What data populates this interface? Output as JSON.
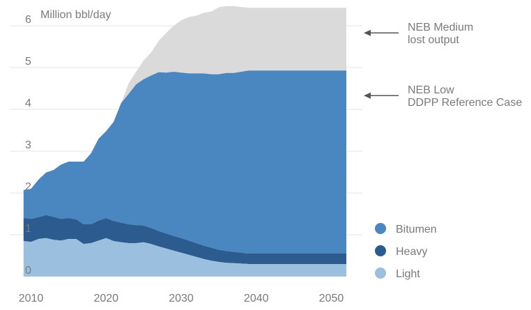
{
  "chart_data": {
    "type": "area",
    "ylabel": "Million bbl/day",
    "ylim": [
      0,
      6
    ],
    "yticks": [
      0,
      1,
      2,
      3,
      4,
      5,
      6
    ],
    "xlim": [
      2008,
      2052
    ],
    "xticks": [
      2010,
      2020,
      2030,
      2040,
      2050
    ],
    "grid": true,
    "legend_placement": "bottom-right",
    "colors": {
      "bitumen": "#4a86c0",
      "heavy": "#2c5b8f",
      "light": "#9bbfdf",
      "lost_output": "#dadada",
      "grid": "#e3e3e3",
      "text": "#7a7a7a",
      "arrow": "#555555"
    },
    "x": [
      2009,
      2010,
      2011,
      2012,
      2013,
      2014,
      2015,
      2016,
      2017,
      2018,
      2019,
      2020,
      2021,
      2022,
      2023,
      2024,
      2025,
      2026,
      2027,
      2028,
      2029,
      2030,
      2031,
      2032,
      2033,
      2034,
      2035,
      2036,
      2037,
      2038,
      2039,
      2040,
      2041,
      2042,
      2043,
      2044,
      2045,
      2046,
      2047,
      2048,
      2049,
      2050,
      2051,
      2052
    ],
    "series": [
      {
        "name": "Light",
        "stack_order": 1,
        "values": [
          0.85,
          0.83,
          0.9,
          0.92,
          0.88,
          0.86,
          0.9,
          0.9,
          0.78,
          0.8,
          0.86,
          0.92,
          0.85,
          0.82,
          0.8,
          0.8,
          0.82,
          0.78,
          0.72,
          0.67,
          0.62,
          0.57,
          0.52,
          0.47,
          0.42,
          0.38,
          0.35,
          0.33,
          0.32,
          0.31,
          0.3,
          0.3,
          0.3,
          0.3,
          0.3,
          0.3,
          0.3,
          0.3,
          0.3,
          0.3,
          0.3,
          0.3,
          0.3,
          0.3
        ]
      },
      {
        "name": "Heavy",
        "stack_order": 2,
        "values": [
          0.55,
          0.55,
          0.52,
          0.55,
          0.55,
          0.52,
          0.5,
          0.47,
          0.47,
          0.45,
          0.48,
          0.48,
          0.48,
          0.47,
          0.45,
          0.43,
          0.4,
          0.38,
          0.37,
          0.36,
          0.35,
          0.35,
          0.34,
          0.33,
          0.32,
          0.31,
          0.29,
          0.28,
          0.27,
          0.26,
          0.25,
          0.25,
          0.25,
          0.25,
          0.25,
          0.25,
          0.25,
          0.25,
          0.25,
          0.25,
          0.25,
          0.25,
          0.25,
          0.25
        ]
      },
      {
        "name": "Bitumen",
        "stack_order": 3,
        "values": [
          0.67,
          0.72,
          0.9,
          1.02,
          1.12,
          1.3,
          1.35,
          1.38,
          1.5,
          1.7,
          1.96,
          2.08,
          2.37,
          2.86,
          3.12,
          3.37,
          3.5,
          3.65,
          3.8,
          3.85,
          3.93,
          3.96,
          4.0,
          4.06,
          4.12,
          4.15,
          4.2,
          4.26,
          4.28,
          4.33,
          4.38,
          4.38,
          4.38,
          4.38,
          4.38,
          4.38,
          4.38,
          4.38,
          4.38,
          4.38,
          4.38,
          4.38,
          4.38,
          4.38
        ]
      },
      {
        "name": "lost output",
        "stack_order": 4,
        "values": [
          0,
          0,
          0,
          0,
          0,
          0,
          0,
          0,
          0,
          0,
          0,
          0,
          0,
          0,
          0.25,
          0.3,
          0.45,
          0.55,
          0.75,
          0.95,
          1.1,
          1.25,
          1.35,
          1.38,
          1.45,
          1.5,
          1.6,
          1.6,
          1.6,
          1.55,
          1.5,
          1.5,
          1.5,
          1.5,
          1.5,
          1.5,
          1.5,
          1.5,
          1.5,
          1.5,
          1.5,
          1.5,
          1.5,
          1.5
        ]
      }
    ],
    "legend": [
      {
        "name": "Bitumen",
        "color_key": "bitumen"
      },
      {
        "name": "Heavy",
        "color_key": "heavy"
      },
      {
        "name": "Light",
        "color_key": "light"
      }
    ],
    "annotations": [
      {
        "lines": [
          "NEB Medium",
          "lost output"
        ],
        "points_to_y": 5.83
      },
      {
        "lines": [
          "NEB Low",
          "DDPP Reference Case"
        ],
        "points_to_y": 4.33
      }
    ]
  }
}
